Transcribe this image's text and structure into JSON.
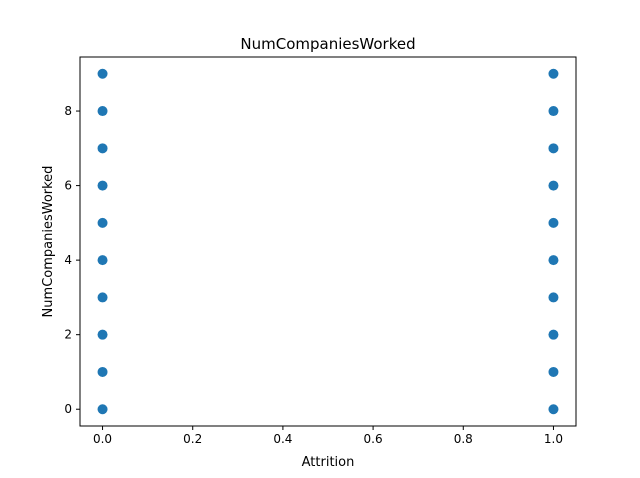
{
  "chart_data": {
    "type": "scatter",
    "title": "NumCompaniesWorked",
    "xlabel": "Attrition",
    "ylabel": "NumCompaniesWorked",
    "xlim": [
      -0.05,
      1.05
    ],
    "ylim": [
      -0.45,
      9.45
    ],
    "xticks": [
      0.0,
      0.2,
      0.4,
      0.6,
      0.8,
      1.0
    ],
    "xtick_labels": [
      "0.0",
      "0.2",
      "0.4",
      "0.6",
      "0.8",
      "1.0"
    ],
    "yticks": [
      0,
      2,
      4,
      6,
      8
    ],
    "ytick_labels": [
      "0",
      "2",
      "4",
      "6",
      "8"
    ],
    "grid": false,
    "legend": "none",
    "marker_color": "#1f77b4",
    "points": [
      {
        "x": 0,
        "y": 0
      },
      {
        "x": 0,
        "y": 1
      },
      {
        "x": 0,
        "y": 2
      },
      {
        "x": 0,
        "y": 3
      },
      {
        "x": 0,
        "y": 4
      },
      {
        "x": 0,
        "y": 5
      },
      {
        "x": 0,
        "y": 6
      },
      {
        "x": 0,
        "y": 7
      },
      {
        "x": 0,
        "y": 8
      },
      {
        "x": 0,
        "y": 9
      },
      {
        "x": 1,
        "y": 0
      },
      {
        "x": 1,
        "y": 1
      },
      {
        "x": 1,
        "y": 2
      },
      {
        "x": 1,
        "y": 3
      },
      {
        "x": 1,
        "y": 4
      },
      {
        "x": 1,
        "y": 5
      },
      {
        "x": 1,
        "y": 6
      },
      {
        "x": 1,
        "y": 7
      },
      {
        "x": 1,
        "y": 8
      },
      {
        "x": 1,
        "y": 9
      }
    ]
  }
}
